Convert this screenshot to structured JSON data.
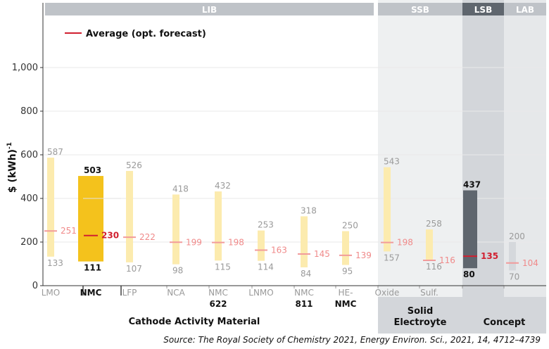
{
  "chart_data": {
    "type": "bar",
    "subtype": "floating-range",
    "ylabel": "$ (kWh)",
    "ylabel_sup": "-1",
    "xlabel": "Cathode Activity Material",
    "ylim": [
      0,
      1150
    ],
    "yticks": [
      0,
      200,
      400,
      600,
      800,
      1000
    ],
    "ytick_labels": [
      "0",
      "200",
      "400",
      "600",
      "800",
      "1,000"
    ],
    "legend": {
      "label": "Average (opt. forecast)",
      "position": "top-left"
    },
    "groups": [
      {
        "label": "LIB",
        "from": 0,
        "to": 7
      },
      {
        "label": "SSB",
        "from": 8,
        "to": 9
      },
      {
        "label": "LSB",
        "from": 10,
        "to": 10
      },
      {
        "label": "LAB",
        "from": 11,
        "to": 11
      }
    ],
    "group_labels": [
      {
        "label": "Solid Electroyte",
        "lines": [
          "Solid",
          "Electroyte"
        ],
        "from": 8,
        "to": 9
      },
      {
        "label": "Concept",
        "lines": [
          "Concept"
        ],
        "from": 10,
        "to": 11
      }
    ],
    "categories": [
      {
        "label": "LMO",
        "lines": [
          "LMO"
        ],
        "min": 133,
        "max": 587,
        "avg": 251,
        "highlight": false
      },
      {
        "label": "NMC",
        "lines": [
          "NMC"
        ],
        "min": 111,
        "max": 503,
        "avg": 230,
        "highlight": true
      },
      {
        "label": "LFP",
        "lines": [
          "LFP"
        ],
        "min": 107,
        "max": 526,
        "avg": 222,
        "highlight": false
      },
      {
        "label": "NCA",
        "lines": [
          "NCA"
        ],
        "min": 98,
        "max": 418,
        "avg": 199,
        "highlight": false
      },
      {
        "label": "NMC 622",
        "lines": [
          "NMC",
          "622"
        ],
        "min": 115,
        "max": 432,
        "avg": 198,
        "highlight": false
      },
      {
        "label": "LNMO",
        "lines": [
          "LNMO"
        ],
        "min": 114,
        "max": 253,
        "avg": 163,
        "highlight": false
      },
      {
        "label": "NMC 811",
        "lines": [
          "NMC",
          "811"
        ],
        "min": 84,
        "max": 318,
        "avg": 145,
        "highlight": false
      },
      {
        "label": "HE-NMC",
        "lines": [
          "HE-",
          "NMC"
        ],
        "min": 95,
        "max": 250,
        "avg": 139,
        "highlight": false
      },
      {
        "label": "Oxide",
        "lines": [
          "Oxide"
        ],
        "min": 157,
        "max": 543,
        "avg": 198,
        "highlight": false
      },
      {
        "label": "Sulf.",
        "lines": [
          "Sulf."
        ],
        "min": 116,
        "max": 258,
        "avg": 116,
        "highlight": false
      },
      {
        "label": "LSB",
        "lines": [],
        "min": 80,
        "max": 437,
        "avg": 135,
        "highlight": true
      },
      {
        "label": "LAB",
        "lines": [],
        "min": 70,
        "max": 200,
        "avg": 104,
        "highlight": false
      }
    ],
    "colors": {
      "range": "#fcebae",
      "range_highlight": "#f4c21c",
      "range_lsb": "#5f666e",
      "range_lab": "#d5d8dc",
      "average": "#f29b9b",
      "average_highlight": "#d12030",
      "group_band": "#bfc3c8",
      "lsb_band": "#5f666e",
      "ssb_bg": "#eef0f1",
      "lsb_bg": "#d3d6da",
      "lab_bg": "#e6e8ea"
    }
  },
  "source": "Source: The Royal Society of Chemistry 2021, Energy Environ. Sci., 2021, 14, 4712–4739"
}
